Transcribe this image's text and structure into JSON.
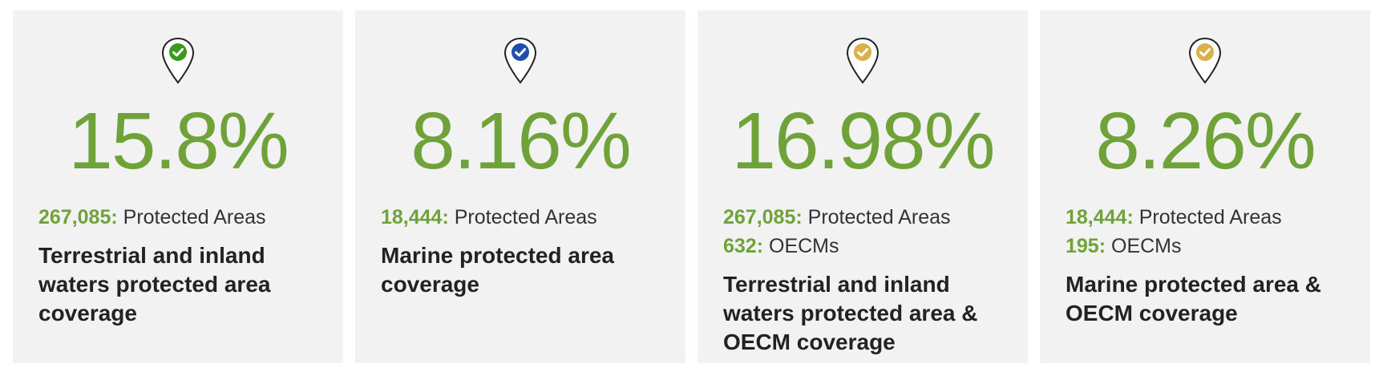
{
  "cards": [
    {
      "icon": "map-pin-check-icon",
      "badge_color": "#3a9a1e",
      "percentage": "15.8%",
      "stats": [
        {
          "value": "267,085:",
          "label": "Protected Areas"
        }
      ],
      "title": "Terrestrial and inland waters protected area coverage"
    },
    {
      "icon": "map-pin-check-icon",
      "badge_color": "#1f4fa8",
      "percentage": "8.16%",
      "stats": [
        {
          "value": "18,444:",
          "label": "Protected Areas"
        }
      ],
      "title": "Marine protected area coverage"
    },
    {
      "icon": "map-pin-check-icon",
      "badge_color": "#d9b04a",
      "percentage": "16.98%",
      "stats": [
        {
          "value": "267,085:",
          "label": "Protected Areas"
        },
        {
          "value": "632:",
          "label": "OECMs"
        }
      ],
      "title": "Terrestrial and inland waters protected area & OECM coverage"
    },
    {
      "icon": "map-pin-check-icon",
      "badge_color": "#d9b04a",
      "percentage": "8.26%",
      "stats": [
        {
          "value": "18,444:",
          "label": "Protected Areas"
        },
        {
          "value": "195:",
          "label": "OECMs"
        }
      ],
      "title": "Marine protected area & OECM coverage"
    }
  ],
  "colors": {
    "accent_green": "#6fa33a",
    "card_background": "#f2f2f2",
    "title_text": "#222222"
  }
}
